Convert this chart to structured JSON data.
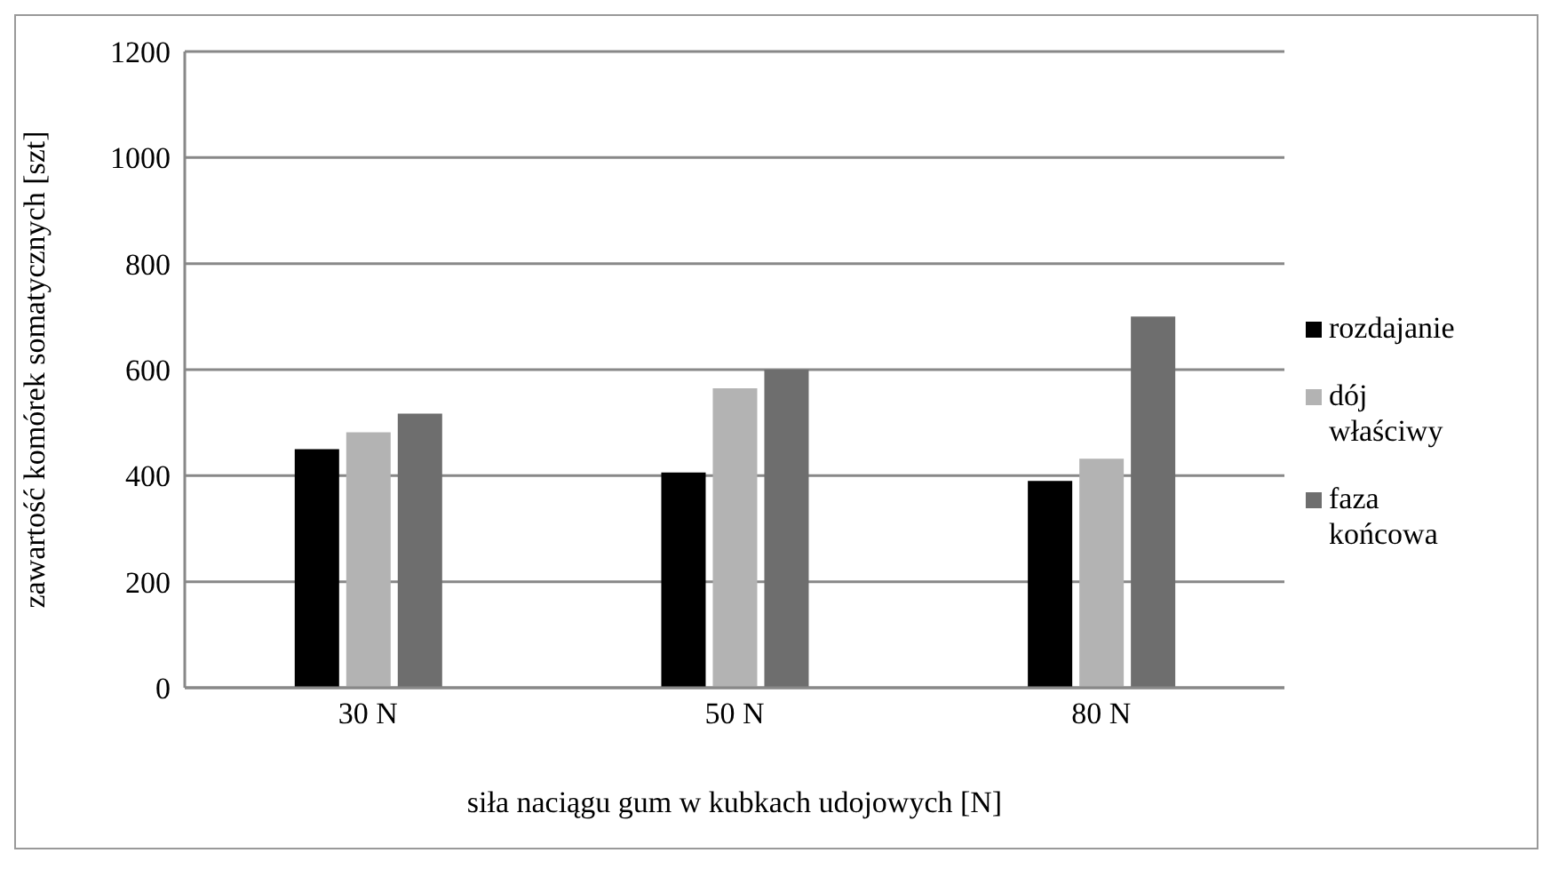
{
  "chart_data": {
    "type": "bar",
    "categories": [
      "30 N",
      "50 N",
      "80 N"
    ],
    "xlabel": "siła naciągu gum w kubkach udojowych [N]",
    "ylabel": "zawartość komórek somatycznych [szt]",
    "series": [
      {
        "name": "rozdajanie",
        "color": "#000000",
        "values": [
          450,
          406,
          390
        ]
      },
      {
        "name": "dój właściwy",
        "color": "#b3b3b3",
        "values": [
          482,
          565,
          432
        ]
      },
      {
        "name": "faza końcowa",
        "color": "#6e6e6e",
        "values": [
          517,
          600,
          700
        ]
      }
    ],
    "ylim": [
      0,
      1200
    ],
    "yticks": [
      0,
      200,
      400,
      600,
      800,
      1000,
      1200
    ],
    "grid": "y",
    "legend": "right"
  }
}
